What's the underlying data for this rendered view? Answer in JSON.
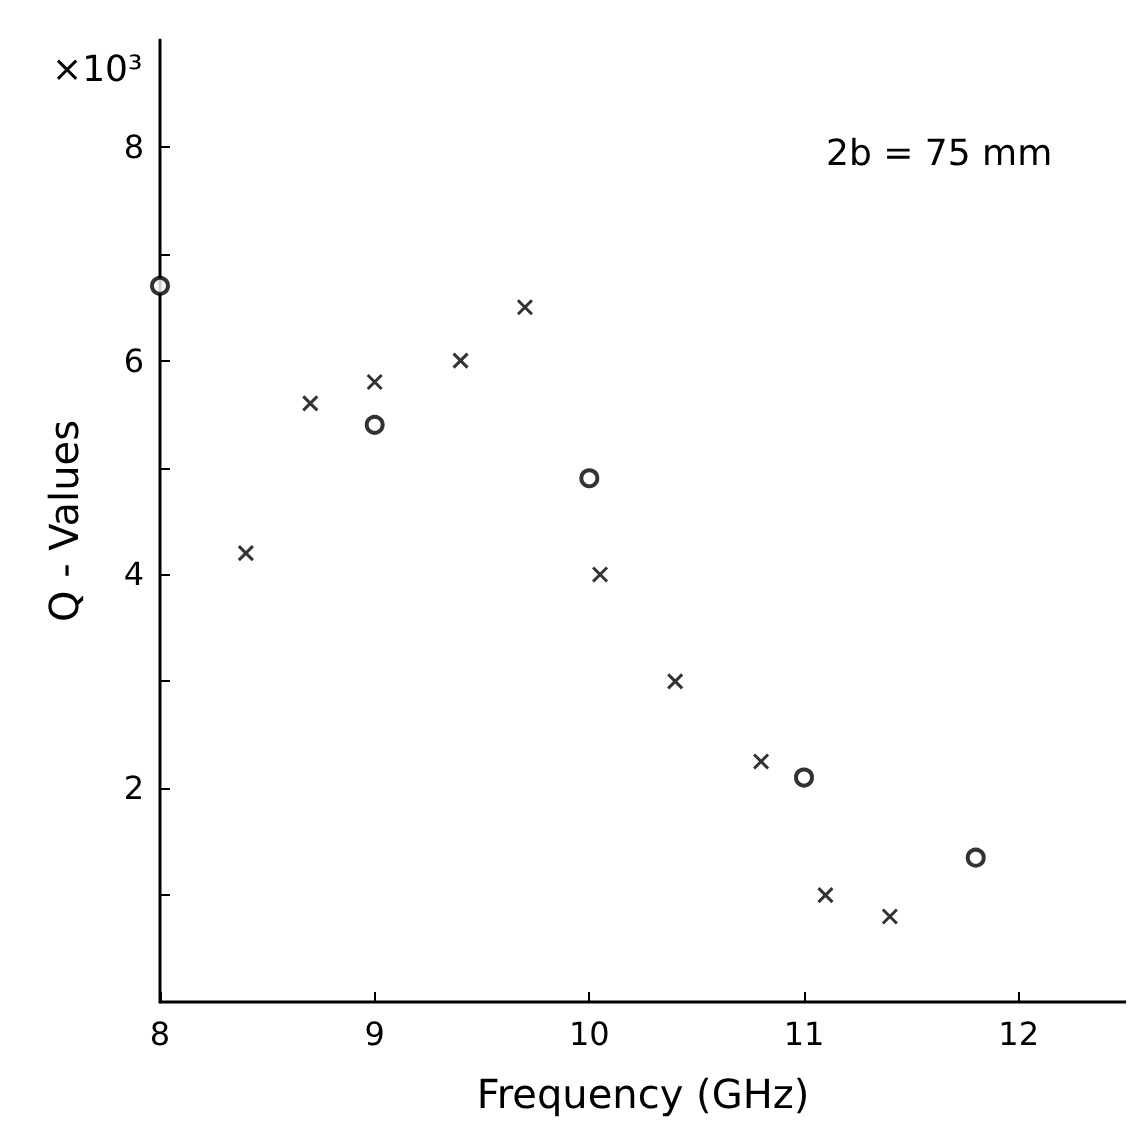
{
  "chart_data": {
    "type": "scatter",
    "xlabel": "Frequency (GHz)",
    "ylabel": "Q - Values",
    "annotations": [
      "×10³",
      "2b = 75 mm"
    ],
    "xlim": [
      8,
      12.5
    ],
    "xticks": [
      8,
      9,
      10,
      11,
      12
    ],
    "ylim": [
      0,
      9
    ],
    "yticks": [
      {
        "value": 1,
        "label": null
      },
      2,
      {
        "value": 3,
        "label": null
      },
      4,
      {
        "value": 5,
        "label": null
      },
      6,
      {
        "value": 7,
        "label": null
      },
      8
    ],
    "grid": false,
    "series": [
      {
        "color": "#000000",
        "marker": "cross",
        "x": [
          8.4,
          8.7,
          9.0,
          9.4,
          9.7,
          10.05,
          10.4,
          10.8,
          11.1,
          11.4
        ],
        "values": [
          4.2,
          5.6,
          5.8,
          6.0,
          6.5,
          4.0,
          3.0,
          2.25,
          1.0,
          0.8
        ]
      },
      {
        "color": "#000000",
        "marker": "circle",
        "x": [
          8.0,
          9.0,
          10.0,
          11.0,
          11.8
        ],
        "values": [
          6.7,
          5.4,
          4.9,
          2.1,
          1.35
        ]
      }
    ]
  }
}
